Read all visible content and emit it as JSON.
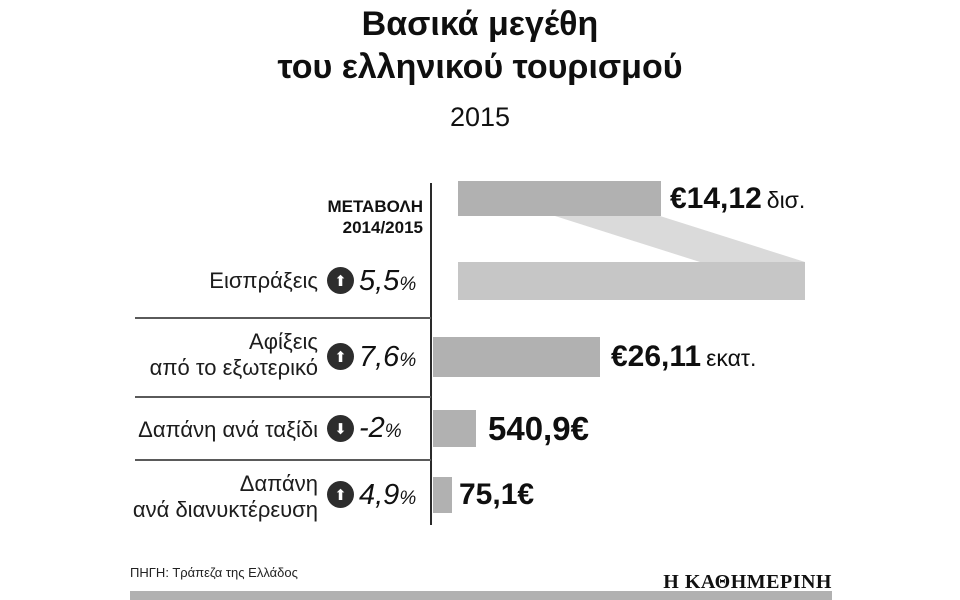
{
  "chart_data": {
    "type": "bar",
    "title": "Βασικά μεγέθη του ελληνικού τουρισμού",
    "title_lines": [
      "Βασικά μεγέθη",
      "του ελληνικού τουρισμού"
    ],
    "subtitle": "2015",
    "change_header_lines": [
      "ΜΕΤΑΒΟΛΗ",
      "2014/2015"
    ],
    "percent_sign": "%",
    "categories": [
      "Εισπράξεις",
      "Αφίξεις από το εξωτερικό",
      "Δαπάνη ανά ταξίδι",
      "Δαπάνη ανά διανυκτέρευση"
    ],
    "values": [
      14.12,
      26.11,
      540.9,
      75.1
    ],
    "changes_pct": [
      5.5,
      7.6,
      -2,
      4.9
    ],
    "rows": [
      {
        "label_lines": [
          "Εισπράξεις"
        ],
        "direction": "up",
        "arrow": "⬆",
        "change": "5,5",
        "value_main": "€14,12",
        "value_suffix": "δισ."
      },
      {
        "label_lines": [
          "Αφίξεις",
          "από το εξωτερικό"
        ],
        "direction": "up",
        "arrow": "⬆",
        "change": "7,6",
        "value_main": "€26,11",
        "value_suffix": "εκατ."
      },
      {
        "label_lines": [
          "Δαπάνη ανά ταξίδι"
        ],
        "direction": "down",
        "arrow": "⬇",
        "change": "-2",
        "value_main": "540,9€",
        "value_suffix": ""
      },
      {
        "label_lines": [
          "Δαπάνη",
          "ανά διανυκτέρευση"
        ],
        "direction": "up",
        "arrow": "⬆",
        "change": "4,9",
        "value_main": "75,1€",
        "value_suffix": ""
      }
    ],
    "source": "ΠΗΓΗ: Τράπεζα της Ελλάδος",
    "brand": "Η ΚΑΘΗΜΕΡΙΝΗ"
  },
  "colors": {
    "bar": "#b1b1b1",
    "bar_light": "#c6c6c6",
    "connector": "#dadada",
    "arrow_circle": "#2d2d2d",
    "footer_bar": "#b1b1b1",
    "text": "#111111",
    "background": "#ffffff"
  }
}
